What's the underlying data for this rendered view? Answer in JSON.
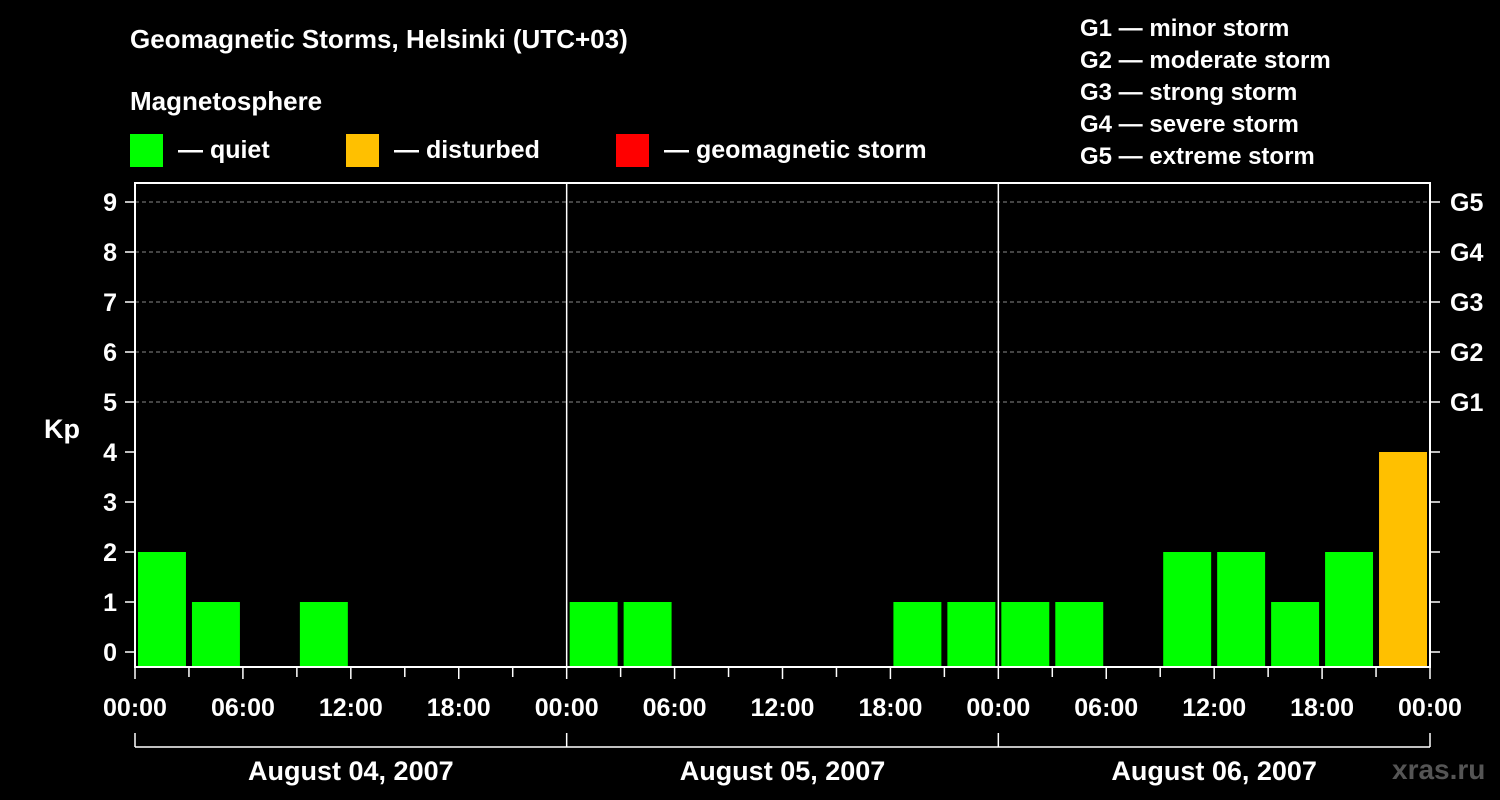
{
  "title": "Geomagnetic Storms, Helsinki (UTC+03)",
  "magnetosphere": {
    "heading": "Magnetosphere",
    "legend": [
      {
        "label": "— quiet",
        "color": "#00ff00"
      },
      {
        "label": "— disturbed",
        "color": "#ffc000"
      },
      {
        "label": "— geomagnetic storm",
        "color": "#ff0000"
      }
    ]
  },
  "storm_scale": [
    "G1 — minor storm",
    "G2 — moderate storm",
    "G3 — strong storm",
    "G4 — severe storm",
    "G5 — extreme storm"
  ],
  "watermark": "xras.ru",
  "chart_data": {
    "type": "bar",
    "ylabel": "Kp",
    "ylim": [
      0,
      9
    ],
    "yticks": [
      0,
      1,
      2,
      3,
      4,
      5,
      6,
      7,
      8,
      9
    ],
    "right_ticks": [
      {
        "value": 5,
        "label": "G1"
      },
      {
        "value": 6,
        "label": "G2"
      },
      {
        "value": 7,
        "label": "G3"
      },
      {
        "value": 8,
        "label": "G4"
      },
      {
        "value": 9,
        "label": "G5"
      }
    ],
    "x_tick_labels": [
      "00:00",
      "06:00",
      "12:00",
      "18:00",
      "00:00",
      "06:00",
      "12:00",
      "18:00",
      "00:00",
      "06:00",
      "12:00",
      "18:00",
      "00:00"
    ],
    "days": [
      "August 04, 2007",
      "August 05, 2007",
      "August 06, 2007"
    ],
    "interval_hours": 3,
    "values": [
      2,
      1,
      0,
      1,
      0,
      0,
      0,
      0,
      1,
      1,
      0,
      0,
      0,
      0,
      1,
      1,
      1,
      1,
      0,
      2,
      2,
      1,
      2,
      4
    ],
    "status": [
      "quiet",
      "quiet",
      "quiet",
      "quiet",
      "quiet",
      "quiet",
      "quiet",
      "quiet",
      "quiet",
      "quiet",
      "quiet",
      "quiet",
      "quiet",
      "quiet",
      "quiet",
      "quiet",
      "quiet",
      "quiet",
      "quiet",
      "quiet",
      "quiet",
      "quiet",
      "quiet",
      "disturbed"
    ],
    "grid": true
  }
}
